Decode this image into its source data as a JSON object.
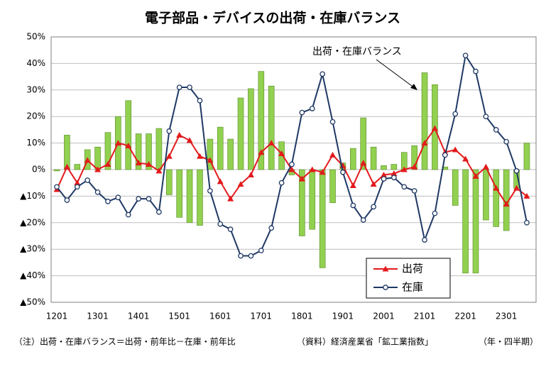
{
  "chart_data": {
    "type": "combo",
    "title": "電子部品・デバイスの出荷・在庫バランス",
    "note": "（注）出荷・在庫バランス＝出荷・前年比－在庫・前年比",
    "source": "（資料）経済産業省「鉱工業指数」",
    "x_unit": "（年・四半期）",
    "categories": [
      "1201",
      null,
      null,
      null,
      "1301",
      null,
      null,
      null,
      "1401",
      null,
      null,
      null,
      "1501",
      null,
      null,
      null,
      "1601",
      null,
      null,
      null,
      "1701",
      null,
      null,
      null,
      "1801",
      null,
      null,
      null,
      "1901",
      null,
      null,
      null,
      "2001",
      null,
      null,
      null,
      "2101",
      null,
      null,
      null,
      "2201",
      null,
      null,
      null,
      "2301",
      null,
      null
    ],
    "ylim": [
      -50,
      50
    ],
    "yticks": [
      {
        "value": 50,
        "label": "50%"
      },
      {
        "value": 40,
        "label": "40%"
      },
      {
        "value": 30,
        "label": "30%"
      },
      {
        "value": 20,
        "label": "20%"
      },
      {
        "value": 10,
        "label": "10%"
      },
      {
        "value": 0,
        "label": "0%"
      },
      {
        "value": -10,
        "label": "▲10%"
      },
      {
        "value": -20,
        "label": "▲20%"
      },
      {
        "value": -30,
        "label": "▲30%"
      },
      {
        "value": -40,
        "label": "▲40%"
      },
      {
        "value": -50,
        "label": "▲50%"
      }
    ],
    "grid": true,
    "series": [
      {
        "name": "出荷",
        "type": "line",
        "marker": "triangle",
        "color": "#e31a1c",
        "values": [
          -7.5,
          1,
          -5,
          3.5,
          0,
          2,
          10,
          9,
          2.5,
          2,
          -0.5,
          5,
          13,
          11,
          5,
          3.5,
          -4.5,
          -11,
          -5.5,
          -2,
          6.5,
          10,
          6,
          0,
          -3.5,
          0,
          -1,
          5.5,
          1.5,
          -6,
          2.5,
          -5.5,
          -2,
          -1.5,
          0,
          1,
          10,
          15.5,
          6.5,
          7.5,
          4,
          -2.5,
          1,
          -7,
          -13,
          -7,
          -10
        ]
      },
      {
        "name": "在庫",
        "type": "line",
        "marker": "circle",
        "color": "#1f3864",
        "values": [
          -6.5,
          -11.5,
          -6.5,
          -4,
          -8.5,
          -12,
          -10.5,
          -17,
          -11,
          -11,
          -16,
          14.5,
          31,
          31,
          26,
          -8,
          -20.5,
          -22.5,
          -32.5,
          -32.5,
          -30.5,
          -22,
          -5,
          2,
          21.5,
          23,
          36,
          18,
          -1,
          -13.5,
          -19,
          -14,
          -3.5,
          -3,
          -6.5,
          -8,
          -26.5,
          -16.5,
          5.5,
          21,
          43,
          37,
          20,
          15,
          10.5,
          -0.5,
          -20
        ]
      },
      {
        "name": "出荷・在庫バランス",
        "type": "bar",
        "color": "#92d050",
        "values": [
          -0.5,
          13,
          2,
          7.5,
          8.5,
          14,
          20,
          26,
          13.5,
          13.5,
          15.5,
          -9.5,
          -18,
          -20,
          -21,
          11.5,
          16,
          11.5,
          27,
          30.5,
          37,
          31.5,
          10.5,
          -2,
          -25,
          -22.5,
          -37,
          -12.5,
          2.5,
          8,
          19.5,
          8.5,
          1.5,
          2,
          6.5,
          9,
          36.5,
          32,
          1,
          -13.5,
          -39,
          -39,
          -19,
          -21.5,
          -23,
          -7,
          10
        ]
      }
    ]
  }
}
